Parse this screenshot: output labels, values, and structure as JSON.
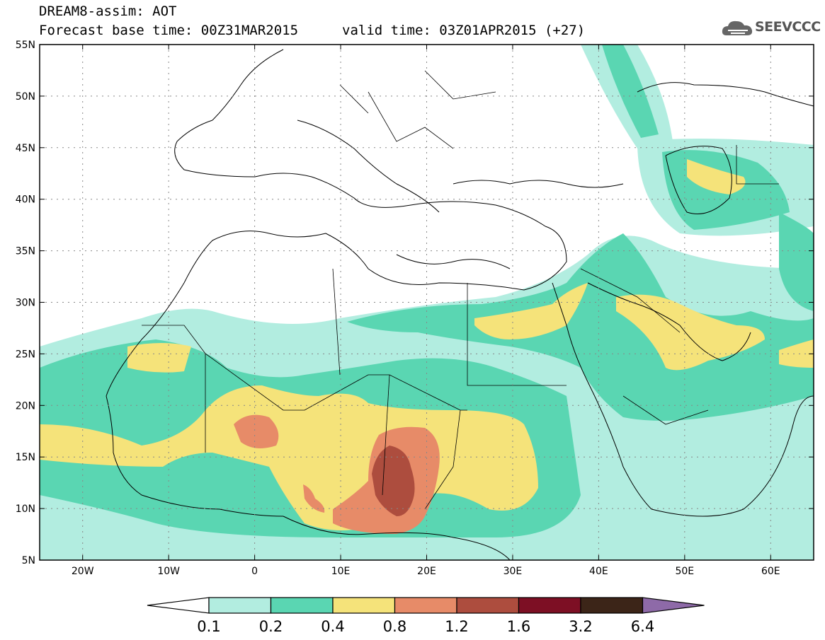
{
  "header": {
    "title": "DREAM8-assim: AOT",
    "base_time": "Forecast base time: 00Z31MAR2015",
    "valid_time": "valid time: 03Z01APR2015 (+27)",
    "logo_text": "SEEVCCC",
    "logo_icon": "cloud-icon"
  },
  "axes": {
    "lat_labels": [
      "55N",
      "50N",
      "45N",
      "40N",
      "35N",
      "30N",
      "25N",
      "20N",
      "15N",
      "10N",
      "5N"
    ],
    "lon_labels": [
      "20W",
      "10W",
      "0",
      "10E",
      "20E",
      "30E",
      "40E",
      "50E",
      "60E"
    ],
    "lat_range": [
      5,
      55
    ],
    "lon_range": [
      -25,
      65
    ],
    "grid": "dotted"
  },
  "colorbar": {
    "labels": [
      "0.1",
      "0.2",
      "0.4",
      "0.8",
      "1.2",
      "1.6",
      "3.2",
      "6.4"
    ],
    "colors": [
      "#b2ede0",
      "#5ad6b2",
      "#f5e37a",
      "#e78b68",
      "#ad4d3e",
      "#7d0f24",
      "#3c2518",
      "#8e6aa8"
    ],
    "extend": "both"
  },
  "colors": {
    "c1": "#b2ede0",
    "c2": "#5ad6b2",
    "c3": "#f5e37a",
    "c4": "#e78b68",
    "c5": "#ad4d3e"
  }
}
